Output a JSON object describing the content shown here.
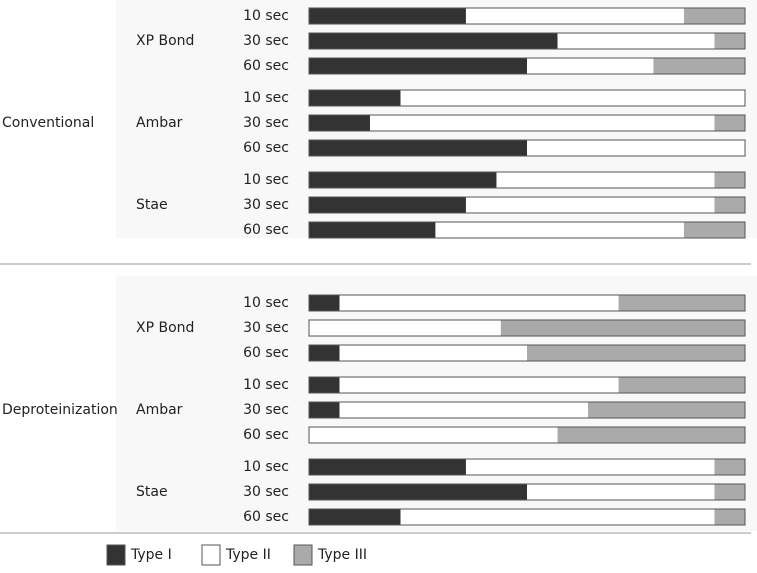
{
  "chart_data": {
    "type": "bar",
    "orientation": "horizontal",
    "stacked": true,
    "normalized": true,
    "unit": "fraction",
    "legend_position": "bottom",
    "series_names": [
      "Type I",
      "Type II",
      "Type III"
    ],
    "colors": {
      "Type I": "#333333",
      "Type II": "#ffffff",
      "Type III": "#aaaaaa"
    },
    "groups": [
      {
        "label": "Conventional",
        "materials": [
          {
            "label": "XP Bond",
            "rows": [
              {
                "time": "10 sec",
                "values": [
                  0.36,
                  0.5,
                  0.14
                ]
              },
              {
                "time": "30 sec",
                "values": [
                  0.57,
                  0.36,
                  0.07
                ]
              },
              {
                "time": "60 sec",
                "values": [
                  0.5,
                  0.29,
                  0.21
                ]
              }
            ]
          },
          {
            "label": "Ambar",
            "rows": [
              {
                "time": "10 sec",
                "values": [
                  0.21,
                  0.79,
                  0.0
                ]
              },
              {
                "time": "30 sec",
                "values": [
                  0.14,
                  0.79,
                  0.07
                ]
              },
              {
                "time": "60 sec",
                "values": [
                  0.5,
                  0.5,
                  0.0
                ]
              }
            ]
          },
          {
            "label": "Stae",
            "rows": [
              {
                "time": "10 sec",
                "values": [
                  0.43,
                  0.5,
                  0.07
                ]
              },
              {
                "time": "30 sec",
                "values": [
                  0.36,
                  0.57,
                  0.07
                ]
              },
              {
                "time": "60 sec",
                "values": [
                  0.29,
                  0.57,
                  0.14
                ]
              }
            ]
          }
        ]
      },
      {
        "label": "Deproteinization",
        "materials": [
          {
            "label": "XP Bond",
            "rows": [
              {
                "time": "10 sec",
                "values": [
                  0.07,
                  0.64,
                  0.29
                ]
              },
              {
                "time": "30 sec",
                "values": [
                  0.0,
                  0.44,
                  0.56
                ]
              },
              {
                "time": "60 sec",
                "values": [
                  0.07,
                  0.43,
                  0.5
                ]
              }
            ]
          },
          {
            "label": "Ambar",
            "rows": [
              {
                "time": "10 sec",
                "values": [
                  0.07,
                  0.64,
                  0.29
                ]
              },
              {
                "time": "30 sec",
                "values": [
                  0.07,
                  0.57,
                  0.36
                ]
              },
              {
                "time": "60 sec",
                "values": [
                  0.0,
                  0.57,
                  0.43
                ]
              }
            ]
          },
          {
            "label": "Stae",
            "rows": [
              {
                "time": "10 sec",
                "values": [
                  0.36,
                  0.57,
                  0.07
                ]
              },
              {
                "time": "30 sec",
                "values": [
                  0.5,
                  0.43,
                  0.07
                ]
              },
              {
                "time": "60 sec",
                "values": [
                  0.21,
                  0.72,
                  0.07
                ]
              }
            ]
          }
        ]
      }
    ]
  }
}
